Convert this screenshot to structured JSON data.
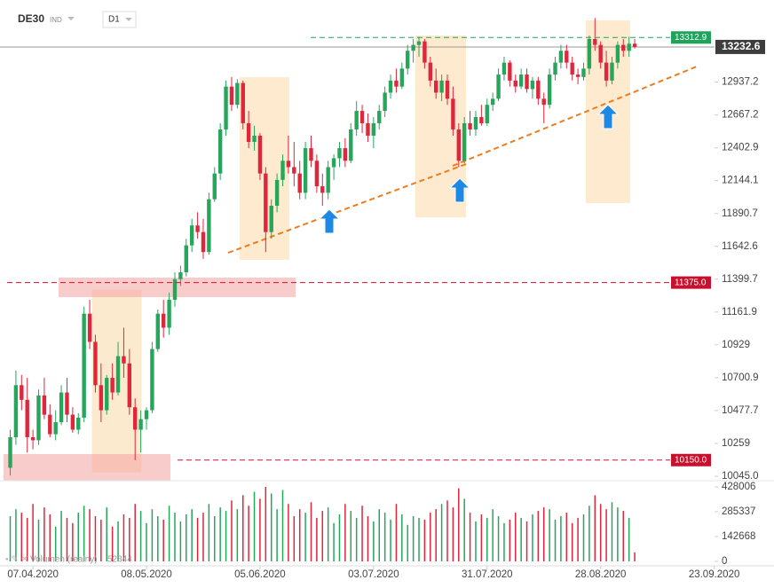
{
  "header": {
    "symbol": "DE30",
    "kind": "IND",
    "interval": "D1"
  },
  "chart_data": {
    "type": "candlestick",
    "log_scale": true,
    "up_color": "#26a65b",
    "down_color": "#e0263b",
    "xlim": [
      -1.8,
      125
    ],
    "ylim": [
      10028,
      13483
    ],
    "xticks": [
      {
        "value": 4,
        "label": "07.04.2020"
      },
      {
        "value": 24,
        "label": "08.05.2020"
      },
      {
        "value": 44,
        "label": "05.06.2020"
      },
      {
        "value": 64,
        "label": "03.07.2020"
      },
      {
        "value": 84,
        "label": "31.07.2020"
      },
      {
        "value": 104,
        "label": "28.08.2020"
      },
      {
        "value": 124,
        "label": "23.09.2020"
      }
    ],
    "yticks": [
      12937.2,
      12667.2,
      12402.9,
      12144.1,
      11890.7,
      11642.6,
      11399.7,
      11161.9,
      10929,
      10700.9,
      10477.7,
      10259,
      {
        "value": 10045,
        "label": "10045.0"
      }
    ],
    "last_price": 13232.6,
    "resistance": 13312.9,
    "levels": [
      {
        "value": 11375,
        "label": "11375.0"
      },
      {
        "value": 10150,
        "label": "10150.0"
      }
    ],
    "ohlc": [
      [
        10100,
        10350,
        10050,
        10300
      ],
      [
        10300,
        10750,
        10250,
        10650
      ],
      [
        10650,
        10720,
        10480,
        10550
      ],
      [
        10550,
        10700,
        10200,
        10300
      ],
      [
        10300,
        10350,
        10220,
        10280
      ],
      [
        10280,
        10620,
        10250,
        10580
      ],
      [
        10580,
        10700,
        10420,
        10450
      ],
      [
        10450,
        10520,
        10300,
        10320
      ],
      [
        10320,
        10480,
        10280,
        10400
      ],
      [
        10400,
        10650,
        10380,
        10600
      ],
      [
        10600,
        10700,
        10400,
        10450
      ],
      [
        10450,
        10500,
        10330,
        10350
      ],
      [
        10350,
        10460,
        10320,
        10430
      ],
      [
        10430,
        11200,
        10400,
        11150
      ],
      [
        11150,
        11250,
        10900,
        10950
      ],
      [
        10950,
        11000,
        10600,
        10650
      ],
      [
        10650,
        10800,
        10400,
        10480
      ],
      [
        10480,
        10720,
        10450,
        10700
      ],
      [
        10700,
        10800,
        10550,
        10600
      ],
      [
        10600,
        10950,
        10580,
        10850
      ],
      [
        10850,
        11050,
        10700,
        10800
      ],
      [
        10800,
        10900,
        10450,
        10500
      ],
      [
        10500,
        10560,
        10150,
        10350
      ],
      [
        10350,
        10480,
        10200,
        10420
      ],
      [
        10420,
        10500,
        10350,
        10480
      ],
      [
        10480,
        10950,
        10460,
        10900
      ],
      [
        10900,
        11180,
        10880,
        11150
      ],
      [
        11150,
        11250,
        10980,
        11050
      ],
      [
        11050,
        11300,
        11000,
        11250
      ],
      [
        11250,
        11450,
        11200,
        11400
      ],
      [
        11400,
        11500,
        11350,
        11450
      ],
      [
        11450,
        11700,
        11420,
        11650
      ],
      [
        11650,
        11850,
        11600,
        11800
      ],
      [
        11800,
        11900,
        11700,
        11750
      ],
      [
        11750,
        11850,
        11550,
        11600
      ],
      [
        11600,
        12050,
        11580,
        12000
      ],
      [
        12000,
        12250,
        11980,
        12200
      ],
      [
        12200,
        12600,
        12150,
        12550
      ],
      [
        12550,
        12950,
        12500,
        12900
      ],
      [
        12900,
        12980,
        12700,
        12750
      ],
      [
        12750,
        12960,
        12720,
        12930
      ],
      [
        12930,
        12950,
        12550,
        12600
      ],
      [
        12600,
        12700,
        12400,
        12450
      ],
      [
        12450,
        12580,
        12380,
        12500
      ],
      [
        12500,
        12520,
        12150,
        12200
      ],
      [
        12200,
        12250,
        11600,
        11750
      ],
      [
        11750,
        12000,
        11700,
        11950
      ],
      [
        11950,
        12200,
        11900,
        12150
      ],
      [
        12150,
        12350,
        12100,
        12300
      ],
      [
        12300,
        12500,
        12200,
        12250
      ],
      [
        12250,
        12450,
        12100,
        12200
      ],
      [
        12200,
        12300,
        12000,
        12050
      ],
      [
        12050,
        12450,
        12000,
        12400
      ],
      [
        12400,
        12500,
        12250,
        12300
      ],
      [
        12300,
        12350,
        12050,
        12100
      ],
      [
        12100,
        12200,
        11950,
        12050
      ],
      [
        12050,
        12300,
        12000,
        12250
      ],
      [
        12250,
        12350,
        12150,
        12320
      ],
      [
        12320,
        12450,
        12250,
        12400
      ],
      [
        12400,
        12480,
        12250,
        12300
      ],
      [
        12300,
        12600,
        12280,
        12550
      ],
      [
        12550,
        12780,
        12500,
        12700
      ],
      [
        12700,
        12750,
        12520,
        12600
      ],
      [
        12600,
        12680,
        12450,
        12500
      ],
      [
        12500,
        12650,
        12400,
        12600
      ],
      [
        12600,
        12750,
        12550,
        12700
      ],
      [
        12700,
        12900,
        12650,
        12850
      ],
      [
        12850,
        13000,
        12800,
        12950
      ],
      [
        12950,
        13050,
        12850,
        12900
      ],
      [
        12900,
        13100,
        12880,
        13050
      ],
      [
        13050,
        13250,
        13000,
        13200
      ],
      [
        13200,
        13300,
        13100,
        13250
      ],
      [
        13250,
        13320,
        13150,
        13280
      ],
      [
        13280,
        13300,
        13050,
        13100
      ],
      [
        13100,
        13150,
        12900,
        12950
      ],
      [
        12950,
        13050,
        12800,
        12850
      ],
      [
        12850,
        13000,
        12780,
        12950
      ],
      [
        12950,
        13000,
        12750,
        12800
      ],
      [
        12800,
        12900,
        12500,
        12550
      ],
      [
        12550,
        12600,
        12250,
        12300
      ],
      [
        12300,
        12650,
        12280,
        12600
      ],
      [
        12600,
        12700,
        12500,
        12550
      ],
      [
        12550,
        12700,
        12500,
        12650
      ],
      [
        12650,
        12750,
        12580,
        12600
      ],
      [
        12600,
        12800,
        12580,
        12750
      ],
      [
        12750,
        12850,
        12700,
        12800
      ],
      [
        12800,
        13050,
        12780,
        13000
      ],
      [
        13000,
        13150,
        12950,
        13100
      ],
      [
        13100,
        13120,
        12900,
        12950
      ],
      [
        12950,
        13000,
        12850,
        12900
      ],
      [
        12900,
        13050,
        12880,
        13000
      ],
      [
        13000,
        13050,
        12850,
        12880
      ],
      [
        12880,
        12980,
        12800,
        12950
      ],
      [
        12950,
        12980,
        12750,
        12800
      ],
      [
        12800,
        12850,
        12600,
        12750
      ],
      [
        12750,
        13050,
        12720,
        13000
      ],
      [
        13000,
        13150,
        12950,
        13100
      ],
      [
        13100,
        13250,
        13050,
        13200
      ],
      [
        13200,
        13250,
        13050,
        13100
      ],
      [
        13100,
        13150,
        12950,
        13000
      ],
      [
        13000,
        13050,
        12920,
        12980
      ],
      [
        12980,
        13100,
        12950,
        13050
      ],
      [
        13050,
        13330,
        13000,
        13300
      ],
      [
        13300,
        13480,
        13200,
        13250
      ],
      [
        13250,
        13280,
        13050,
        13100
      ],
      [
        13100,
        13200,
        12900,
        12950
      ],
      [
        12950,
        13150,
        12920,
        13100
      ],
      [
        13100,
        13280,
        13050,
        13250
      ],
      [
        13250,
        13300,
        13150,
        13200
      ],
      [
        13200,
        13320,
        13150,
        13260
      ],
      [
        13260,
        13300,
        13220,
        13232.6
      ]
    ],
    "volume_name": "Volumen (realny)",
    "volume_ylim": [
      0,
      428006
    ],
    "volume_ticks": [
      428006,
      285337,
      142668,
      0
    ],
    "volume": [
      260000,
      300000,
      280000,
      250000,
      330000,
      240000,
      310000,
      270000,
      200000,
      290000,
      250000,
      220000,
      280000,
      320000,
      300000,
      260000,
      240000,
      310000,
      200000,
      230000,
      270000,
      250000,
      330000,
      290000,
      220000,
      300000,
      260000,
      240000,
      320000,
      280000,
      230000,
      270000,
      300000,
      250000,
      280000,
      330000,
      260000,
      310000,
      290000,
      350000,
      300000,
      380000,
      320000,
      400000,
      360000,
      428006,
      390000,
      300000,
      410000,
      330000,
      260000,
      300000,
      280000,
      340000,
      250000,
      290000,
      310000,
      220000,
      270000,
      330000,
      290000,
      250000,
      320000,
      260000,
      230000,
      300000,
      280000,
      240000,
      330000,
      270000,
      210000,
      260000,
      250000,
      240000,
      280000,
      300000,
      330000,
      350000,
      310000,
      420000,
      360000,
      280000,
      230000,
      270000,
      250000,
      300000,
      260000,
      220000,
      240000,
      280000,
      250000,
      230000,
      270000,
      290000,
      310000,
      300000,
      240000,
      260000,
      280000,
      220000,
      250000,
      270000,
      320000,
      380000,
      330000,
      300000,
      340000,
      310000,
      290000,
      250000,
      52344
    ]
  }
}
